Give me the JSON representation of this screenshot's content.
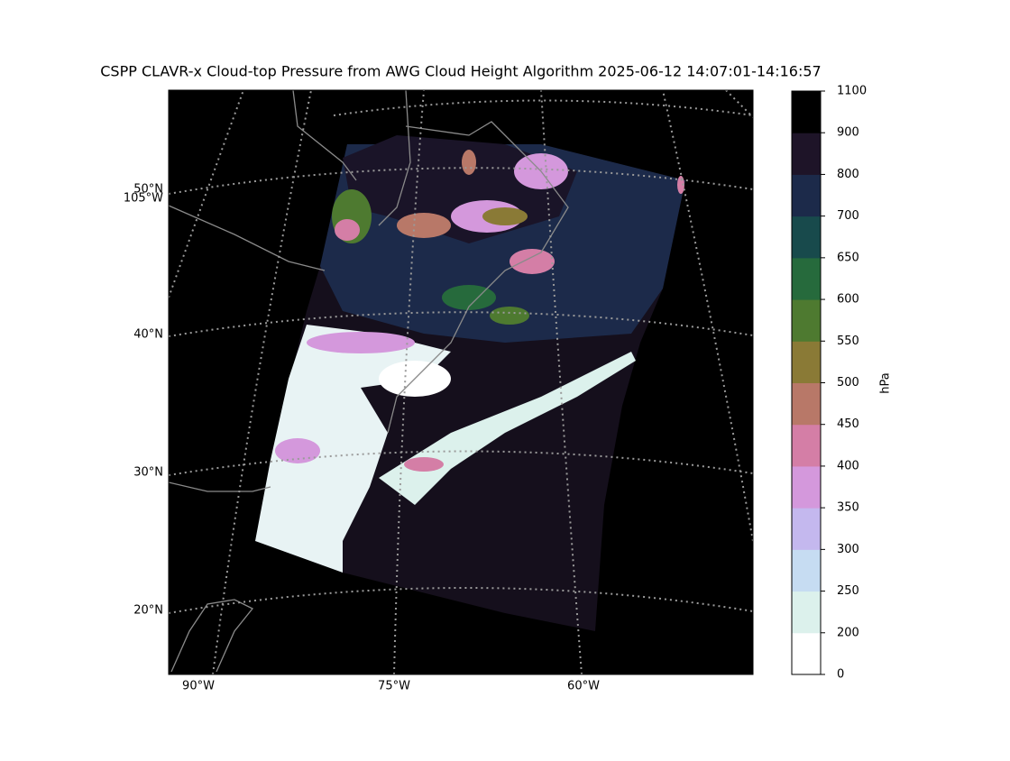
{
  "title": "CSPP CLAVR-x Cloud-top Pressure from AWG Cloud Height Algorithm 2025-06-12 14:07:01-14:16:57",
  "map": {
    "lat_labels": [
      "50°N",
      "40°N",
      "30°N",
      "20°N"
    ],
    "left_lon_labels": [
      "105°W"
    ],
    "lon_labels": [
      "90°W",
      "75°W",
      "60°W"
    ]
  },
  "colorbar": {
    "label": "hPa",
    "ticks": [
      0,
      200,
      250,
      300,
      350,
      400,
      450,
      500,
      550,
      600,
      650,
      700,
      800,
      900,
      1100
    ],
    "colors": [
      "#ffffff",
      "#dcf1ec",
      "#c6dcf2",
      "#c4b8ee",
      "#d498dc",
      "#d47ea6",
      "#b87868",
      "#8a7a36",
      "#4e7a30",
      "#266a3c",
      "#184a4c",
      "#1c2a4a",
      "#1e1428",
      "#000000"
    ]
  }
}
